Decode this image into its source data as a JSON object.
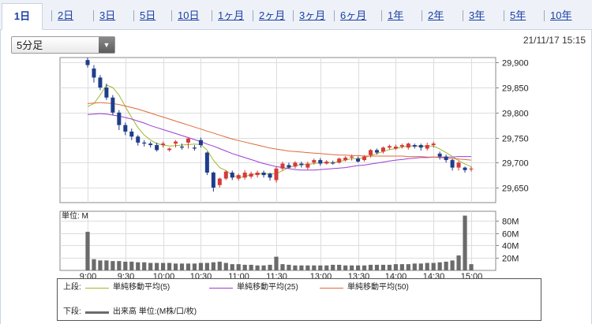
{
  "tabs": [
    {
      "label": "1日",
      "active": true
    },
    {
      "label": "2日"
    },
    {
      "label": "3日"
    },
    {
      "label": "5日"
    },
    {
      "label": "10日"
    },
    {
      "label": "1ヶ月"
    },
    {
      "label": "2ヶ月"
    },
    {
      "label": "3ヶ月"
    },
    {
      "label": "6ヶ月"
    },
    {
      "label": "1年"
    },
    {
      "label": "2年"
    },
    {
      "label": "3年"
    },
    {
      "label": "5年"
    },
    {
      "label": "10年"
    }
  ],
  "interval_select": {
    "value": "5分足"
  },
  "timestamp": "21/11/17 15:15",
  "legend": {
    "upper_label": "上段:",
    "lower_label": "下段:",
    "ma5": "単純移動平均(5)",
    "ma25": "単純移動平均(25)",
    "ma50": "単純移動平均(50)",
    "volume": "出来高 単位:(M株/口/枚)"
  },
  "colors": {
    "up": "#d63a3a",
    "down": "#1f3d8a",
    "ma5": "#9fb82c",
    "ma25": "#9b3fd1",
    "ma50": "#e06a3a",
    "volume": "#6b6b6b"
  },
  "chart_data": [
    {
      "type": "candlestick",
      "x": [
        "9:00",
        "9:05",
        "9:10",
        "9:15",
        "9:20",
        "9:25",
        "9:30",
        "9:35",
        "9:40",
        "9:45",
        "9:50",
        "9:55",
        "10:00",
        "10:05",
        "10:10",
        "10:15",
        "10:20",
        "10:25",
        "10:30",
        "10:35",
        "10:40",
        "10:45",
        "10:50",
        "10:55",
        "11:00",
        "11:05",
        "11:10",
        "11:15",
        "11:20",
        "11:25",
        "11:30",
        "12:30",
        "12:35",
        "12:40",
        "12:45",
        "12:50",
        "12:55",
        "13:00",
        "13:05",
        "13:10",
        "13:15",
        "13:20",
        "13:25",
        "13:30",
        "13:35",
        "13:40",
        "13:45",
        "13:50",
        "13:55",
        "14:00",
        "14:05",
        "14:10",
        "14:15",
        "14:20",
        "14:25",
        "14:30",
        "14:35",
        "14:40",
        "14:45",
        "14:50",
        "14:55",
        "15:00"
      ],
      "xticks": [
        "9:00",
        "9:30",
        "10:00",
        "10:30",
        "11:00",
        "11:30",
        "13:00",
        "13:30",
        "14:00",
        "14:30",
        "15:00"
      ],
      "ylim": [
        29620,
        29910
      ],
      "yticks": [
        29650,
        29700,
        29750,
        29800,
        29850,
        29900
      ],
      "open": [
        29905,
        29888,
        29870,
        29850,
        29830,
        29800,
        29775,
        29762,
        29752,
        29740,
        29738,
        29735,
        29735,
        29725,
        29738,
        29732,
        29740,
        29730,
        29745,
        29720,
        29680,
        29655,
        29668,
        29680,
        29668,
        29670,
        29672,
        29675,
        29680,
        29678,
        29665,
        29688,
        29695,
        29692,
        29698,
        29690,
        29700,
        29705,
        29698,
        29700,
        29700,
        29705,
        29710,
        29708,
        29705,
        29715,
        29725,
        29722,
        29730,
        29728,
        29732,
        29730,
        29735,
        29735,
        29728,
        29735,
        29718,
        29712,
        29705,
        29690,
        29690,
        29688
      ],
      "close": [
        29895,
        29870,
        29850,
        29830,
        29800,
        29775,
        29762,
        29752,
        29740,
        29738,
        29735,
        29725,
        29738,
        29728,
        29742,
        29730,
        29748,
        29728,
        29735,
        29680,
        29650,
        29668,
        29682,
        29670,
        29675,
        29680,
        29678,
        29680,
        29675,
        29670,
        29688,
        29698,
        29690,
        29700,
        29695,
        29698,
        29705,
        29698,
        29702,
        29698,
        29708,
        29710,
        29712,
        29702,
        29712,
        29725,
        29720,
        29730,
        29733,
        29732,
        29735,
        29738,
        29732,
        29730,
        29735,
        29738,
        29712,
        29705,
        29690,
        29700,
        29685,
        29688
      ],
      "high": [
        29910,
        29895,
        29875,
        29858,
        29835,
        29805,
        29780,
        29768,
        29755,
        29745,
        29742,
        29740,
        29742,
        29730,
        29745,
        29738,
        29750,
        29735,
        29750,
        29722,
        29682,
        29670,
        29685,
        29684,
        29678,
        29685,
        29682,
        29684,
        29684,
        29680,
        29692,
        29702,
        29700,
        29703,
        29702,
        29702,
        29708,
        29709,
        29705,
        29704,
        29710,
        29713,
        29716,
        29712,
        29715,
        29727,
        29728,
        29732,
        29736,
        29736,
        29738,
        29740,
        29738,
        29738,
        29740,
        29742,
        29722,
        29716,
        29708,
        29703,
        29692,
        29692
      ],
      "low": [
        29890,
        29860,
        29845,
        29825,
        29795,
        29765,
        29755,
        29745,
        29734,
        29732,
        29730,
        29722,
        29730,
        29722,
        29730,
        29726,
        29728,
        29724,
        29730,
        29675,
        29642,
        29650,
        29665,
        29665,
        29664,
        29666,
        29668,
        29670,
        29670,
        29664,
        29660,
        29684,
        29688,
        29688,
        29690,
        29686,
        29696,
        29694,
        29696,
        29696,
        29698,
        29702,
        29704,
        29700,
        29702,
        29710,
        29716,
        29718,
        29726,
        29725,
        29728,
        29726,
        29728,
        29724,
        29724,
        29730,
        29706,
        29700,
        29684,
        29684,
        29680,
        29682
      ]
    },
    {
      "type": "bar",
      "name": "出来高",
      "ylim": [
        0,
        95
      ],
      "yticks": [
        "20M",
        "40M",
        "60M",
        "80M"
      ],
      "ylabel": "単位: M",
      "values": [
        62,
        18,
        16,
        16,
        15,
        15,
        14,
        14,
        13,
        13,
        12,
        12,
        12,
        12,
        11,
        11,
        11,
        11,
        12,
        12,
        13,
        14,
        12,
        10,
        10,
        9,
        9,
        8,
        8,
        9,
        22,
        10,
        9,
        8,
        8,
        8,
        8,
        8,
        8,
        9,
        9,
        8,
        8,
        8,
        8,
        9,
        9,
        9,
        9,
        10,
        10,
        10,
        11,
        11,
        12,
        12,
        13,
        14,
        16,
        24,
        88,
        10
      ]
    },
    {
      "type": "line",
      "series": [
        {
          "name": "単純移動平均(5)",
          "color": "#9fb82c",
          "values": [
            29812,
            29818,
            29835,
            29855,
            29850,
            29835,
            29812,
            29790,
            29770,
            29755,
            29745,
            29738,
            29735,
            29733,
            29734,
            29735,
            29736,
            29737,
            29736,
            29725,
            29705,
            29690,
            29684,
            29675,
            29670,
            29672,
            29676,
            29678,
            29678,
            29677,
            29678,
            29684,
            29690,
            29694,
            29696,
            29696,
            29698,
            29700,
            29700,
            29700,
            29702,
            29705,
            29708,
            29708,
            29710,
            29714,
            29718,
            29722,
            29726,
            29728,
            29731,
            29733,
            29733,
            29733,
            29733,
            29733,
            29727,
            29720,
            29712,
            29704,
            29697,
            29692
          ]
        },
        {
          "name": "単純移動平均(25)",
          "color": "#9b3fd1",
          "values": [
            29796,
            29797,
            29798,
            29797,
            29795,
            29793,
            29790,
            29787,
            29783,
            29779,
            29774,
            29770,
            29766,
            29762,
            29758,
            29754,
            29750,
            29746,
            29742,
            29737,
            29733,
            29728,
            29723,
            29718,
            29714,
            29710,
            29706,
            29702,
            29698,
            29695,
            29692,
            29690,
            29688,
            29686,
            29685,
            29685,
            29685,
            29686,
            29687,
            29688,
            29689,
            29690,
            29692,
            29694,
            29695,
            29697,
            29699,
            29701,
            29703,
            29705,
            29706,
            29708,
            29709,
            29710,
            29710,
            29711,
            29711,
            29711,
            29711,
            29712,
            29712,
            29712
          ]
        },
        {
          "name": "単純移動平均(50)",
          "color": "#e06a3a",
          "values": [
            29818,
            29819,
            29820,
            29819,
            29818,
            29816,
            29813,
            29810,
            29807,
            29803,
            29799,
            29795,
            29791,
            29787,
            29783,
            29779,
            29775,
            29771,
            29767,
            29763,
            29759,
            29755,
            29751,
            29747,
            29744,
            29741,
            29738,
            29735,
            29732,
            29729,
            29727,
            29725,
            29723,
            29722,
            29721,
            29720,
            29719,
            29718,
            29717,
            29716,
            29715,
            29715,
            29714,
            29714,
            29713,
            29713,
            29713,
            29713,
            29713,
            29713,
            29713,
            29712,
            29712,
            29712,
            29711,
            29711,
            29710,
            29709,
            29708,
            29707,
            29706,
            29705
          ]
        }
      ]
    }
  ]
}
